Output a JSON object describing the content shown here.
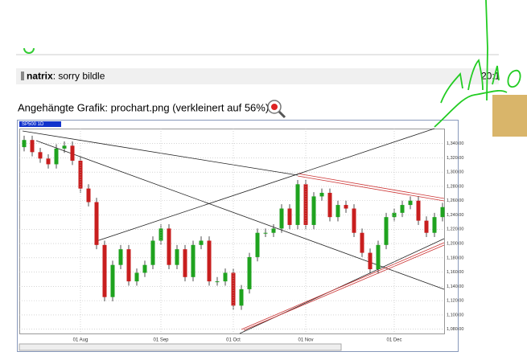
{
  "post": {
    "author": "natrix",
    "message": ": sorry bildle",
    "time": "20:1"
  },
  "attachment": {
    "caption": "Angehängte Grafik: prochart.png (verkleinert auf 56%)"
  },
  "chart_data": {
    "type": "candlestick",
    "symbol": "SP500 1D",
    "categories": [
      null,
      null,
      null,
      null,
      null,
      null,
      null,
      "01 Aug",
      null,
      null,
      null,
      null,
      null,
      null,
      null,
      null,
      null,
      "01 Sep",
      null,
      null,
      null,
      null,
      null,
      null,
      null,
      null,
      "01 Oct",
      null,
      null,
      null,
      null,
      null,
      null,
      null,
      null,
      "01 Nov",
      null,
      null,
      null,
      null,
      null,
      null,
      null,
      null,
      null,
      null,
      "01 Dec",
      null,
      null,
      null,
      null,
      null,
      null
    ],
    "open": [
      1335,
      1345,
      1328,
      1319,
      1311,
      1333,
      1337,
      1316,
      1277,
      1258,
      1198,
      1125,
      1170,
      1192,
      1147,
      1159,
      1170,
      1204,
      1221,
      1170,
      1192,
      1153,
      1198,
      1204,
      1147,
      1147,
      1159,
      1113,
      1136,
      1181,
      1215,
      1215,
      1221,
      1249,
      1226,
      1283,
      1226,
      1266,
      1271,
      1237,
      1254,
      1249,
      1215,
      1187,
      1164,
      1198,
      1237,
      1243,
      1254,
      1260,
      1232,
      1215,
      1237
    ],
    "high": [
      1351,
      1351,
      1334,
      1325,
      1339,
      1343,
      1343,
      1322,
      1283,
      1264,
      1204,
      1176,
      1198,
      1198,
      1165,
      1176,
      1210,
      1227,
      1227,
      1198,
      1198,
      1204,
      1210,
      1210,
      1153,
      1165,
      1165,
      1142,
      1187,
      1221,
      1221,
      1227,
      1255,
      1255,
      1289,
      1289,
      1272,
      1277,
      1277,
      1260,
      1260,
      1255,
      1221,
      1193,
      1204,
      1243,
      1249,
      1260,
      1266,
      1266,
      1238,
      1243,
      1257
    ],
    "low": [
      1329,
      1322,
      1313,
      1305,
      1305,
      1327,
      1310,
      1271,
      1252,
      1192,
      1119,
      1119,
      1164,
      1141,
      1141,
      1153,
      1164,
      1198,
      1164,
      1164,
      1147,
      1147,
      1192,
      1141,
      1141,
      1141,
      1107,
      1107,
      1130,
      1175,
      1209,
      1209,
      1215,
      1220,
      1220,
      1220,
      1220,
      1260,
      1231,
      1231,
      1243,
      1209,
      1181,
      1158,
      1158,
      1192,
      1231,
      1237,
      1248,
      1226,
      1209,
      1209,
      1231
    ],
    "close": [
      1345,
      1328,
      1319,
      1311,
      1333,
      1337,
      1316,
      1277,
      1258,
      1198,
      1125,
      1170,
      1192,
      1147,
      1159,
      1170,
      1204,
      1221,
      1170,
      1192,
      1153,
      1198,
      1204,
      1147,
      1147,
      1159,
      1113,
      1136,
      1181,
      1215,
      1215,
      1221,
      1249,
      1226,
      1283,
      1226,
      1266,
      1271,
      1237,
      1254,
      1249,
      1215,
      1187,
      1164,
      1198,
      1237,
      1243,
      1254,
      1260,
      1232,
      1215,
      1237,
      1251
    ],
    "up_color": "#1fa31f",
    "down_color": "#c81e1e",
    "ylim": [
      1074,
      1361
    ],
    "yticks": [
      {
        "value": 1080,
        "label": "1,080.00"
      },
      {
        "value": 1100,
        "label": "1,100.00"
      },
      {
        "value": 1120,
        "label": "1,120.00"
      },
      {
        "value": 1140,
        "label": "1,140.00"
      },
      {
        "value": 1160,
        "label": "1,160.00"
      },
      {
        "value": 1180,
        "label": "1,180.00"
      },
      {
        "value": 1200,
        "label": "1,200.00"
      },
      {
        "value": 1220,
        "label": "1,220.00"
      },
      {
        "value": 1240,
        "label": "1,240.00"
      },
      {
        "value": 1260,
        "label": "1,260.00"
      },
      {
        "value": 1280,
        "label": "1,280.00"
      },
      {
        "value": 1300,
        "label": "1,300.00"
      },
      {
        "value": 1320,
        "label": "1,320.00"
      },
      {
        "value": 1340,
        "label": "1,340.00"
      }
    ],
    "grid": true
  }
}
